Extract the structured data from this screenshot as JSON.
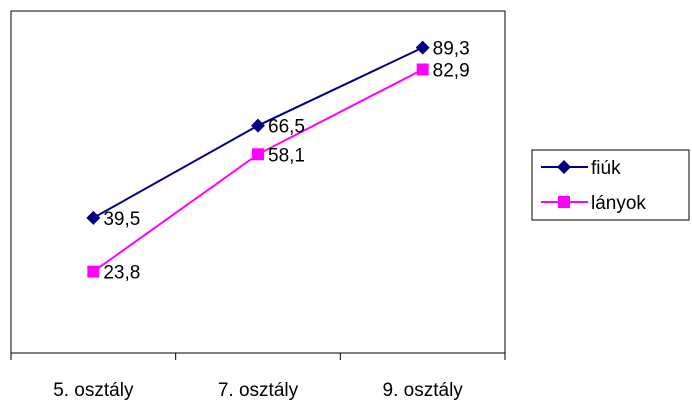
{
  "chart_data": {
    "type": "line",
    "categories": [
      "5. osztály",
      "7. osztály",
      "9. osztály"
    ],
    "series": [
      {
        "name": "fiúk",
        "values": [
          39.5,
          66.5,
          89.3
        ],
        "labels": [
          "39,5",
          "66,5",
          "89,3"
        ],
        "color": "#000080",
        "marker": "diamond"
      },
      {
        "name": "lányok",
        "values": [
          23.8,
          58.1,
          82.9
        ],
        "labels": [
          "23,8",
          "58,1",
          "82,9"
        ],
        "color": "#ff00ff",
        "marker": "square"
      }
    ],
    "ylim": [
      0,
      100
    ],
    "grid": false,
    "legend": "right"
  }
}
